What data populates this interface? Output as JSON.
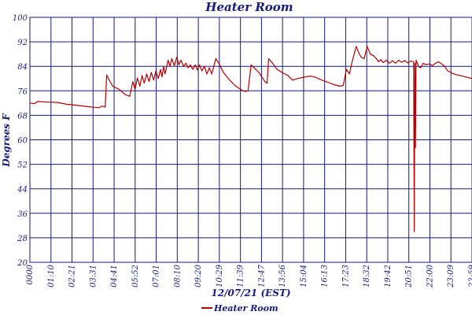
{
  "chart_data": {
    "type": "line",
    "title": "Heater Room",
    "xlabel": "12/07/21 (EST)",
    "ylabel": "Degrees F",
    "ylim": [
      20,
      100
    ],
    "yticks": [
      20,
      28,
      36,
      44,
      52,
      60,
      68,
      76,
      84,
      92,
      100
    ],
    "grid": true,
    "legend_position": "bottom-center",
    "x_unit": "time of day (hh:mm)",
    "x_range": [
      "00:00",
      "23:59"
    ],
    "xtick_labels": [
      "0000",
      "01:10",
      "02:21",
      "03:31",
      "04:41",
      "05:52",
      "07:01",
      "08:10",
      "09:20",
      "10:29",
      "11:39",
      "12:47",
      "13:56",
      "15:04",
      "16:13",
      "17:23",
      "18:32",
      "19:42",
      "20:51",
      "22:00",
      "23:09",
      "23:59"
    ],
    "colors": {
      "series": "#b00000",
      "grid": "#1a1a7a",
      "text": "#1a1a7a",
      "background": "#ffffff"
    },
    "series": [
      {
        "name": "Heater Room",
        "color": "#b00000",
        "points": [
          [
            "00:00",
            72
          ],
          [
            "00:15",
            71.8
          ],
          [
            "00:25",
            72.5
          ],
          [
            "01:00",
            72.3
          ],
          [
            "01:30",
            72.2
          ],
          [
            "02:00",
            71.6
          ],
          [
            "02:40",
            71.2
          ],
          [
            "03:10",
            70.8
          ],
          [
            "03:31",
            70.6
          ],
          [
            "03:45",
            70.5
          ],
          [
            "03:55",
            71
          ],
          [
            "04:05",
            70.7
          ],
          [
            "04:10",
            81.2
          ],
          [
            "04:18",
            79.5
          ],
          [
            "04:30",
            77.5
          ],
          [
            "04:50",
            76.5
          ],
          [
            "05:10",
            74.8
          ],
          [
            "05:25",
            74.2
          ],
          [
            "05:35",
            79
          ],
          [
            "05:42",
            76.5
          ],
          [
            "05:50",
            80.2
          ],
          [
            "05:58",
            77.5
          ],
          [
            "06:05",
            81
          ],
          [
            "06:12",
            78.5
          ],
          [
            "06:20",
            81.5
          ],
          [
            "06:28",
            79
          ],
          [
            "06:35",
            82
          ],
          [
            "06:43",
            79.5
          ],
          [
            "06:50",
            82.5
          ],
          [
            "06:58",
            80
          ],
          [
            "07:05",
            83
          ],
          [
            "07:10",
            80.5
          ],
          [
            "07:15",
            84
          ],
          [
            "07:20",
            81.5
          ],
          [
            "07:30",
            86
          ],
          [
            "07:36",
            84
          ],
          [
            "07:42",
            86.5
          ],
          [
            "07:50",
            84.2
          ],
          [
            "07:58",
            87
          ],
          [
            "08:05",
            84.5
          ],
          [
            "08:12",
            86
          ],
          [
            "08:20",
            84
          ],
          [
            "08:28",
            85
          ],
          [
            "08:35",
            83.5
          ],
          [
            "08:42",
            84.5
          ],
          [
            "08:50",
            83
          ],
          [
            "08:58",
            84.5
          ],
          [
            "09:05",
            82.8
          ],
          [
            "09:12",
            84.5
          ],
          [
            "09:20",
            82.5
          ],
          [
            "09:28",
            84
          ],
          [
            "09:36",
            81.5
          ],
          [
            "09:44",
            83.5
          ],
          [
            "09:52",
            81.5
          ],
          [
            "10:05",
            86.5
          ],
          [
            "10:15",
            85
          ],
          [
            "10:30",
            82
          ],
          [
            "10:50",
            79.5
          ],
          [
            "11:10",
            77.5
          ],
          [
            "11:30",
            76.2
          ],
          [
            "11:40",
            75.8
          ],
          [
            "11:50",
            76
          ],
          [
            "12:00",
            84.5
          ],
          [
            "12:10",
            83.5
          ],
          [
            "12:25",
            82
          ],
          [
            "12:35",
            80.5
          ],
          [
            "12:45",
            79
          ],
          [
            "12:52",
            78.5
          ],
          [
            "12:57",
            86.5
          ],
          [
            "13:10",
            85
          ],
          [
            "13:25",
            83
          ],
          [
            "13:40",
            82
          ],
          [
            "14:00",
            81
          ],
          [
            "14:15",
            79.5
          ],
          [
            "14:30",
            80
          ],
          [
            "14:45",
            80.3
          ],
          [
            "15:00",
            80.6
          ],
          [
            "15:15",
            80.8
          ],
          [
            "15:30",
            80.4
          ],
          [
            "15:50",
            79.5
          ],
          [
            "16:10",
            78.8
          ],
          [
            "16:30",
            78
          ],
          [
            "16:50",
            77.5
          ],
          [
            "17:00",
            77.8
          ],
          [
            "17:10",
            83
          ],
          [
            "17:20",
            81.5
          ],
          [
            "17:30",
            86
          ],
          [
            "17:42",
            90.5
          ],
          [
            "17:50",
            88.5
          ],
          [
            "17:58",
            87
          ],
          [
            "18:08",
            86.5
          ],
          [
            "18:18",
            90.5
          ],
          [
            "18:28",
            88
          ],
          [
            "18:38",
            87.5
          ],
          [
            "18:48",
            86.5
          ],
          [
            "18:55",
            85.5
          ],
          [
            "19:02",
            86.2
          ],
          [
            "19:10",
            85.2
          ],
          [
            "19:20",
            86
          ],
          [
            "19:30",
            85
          ],
          [
            "19:40",
            85.8
          ],
          [
            "19:50",
            85
          ],
          [
            "20:00",
            86
          ],
          [
            "20:10",
            85.3
          ],
          [
            "20:20",
            85.9
          ],
          [
            "20:30",
            85.1
          ],
          [
            "20:40",
            85.7
          ],
          [
            "20:49",
            85.5
          ],
          [
            "20:51",
            30
          ],
          [
            "20:53",
            85
          ],
          [
            "20:55",
            57.5
          ],
          [
            "20:57",
            86
          ],
          [
            "21:05",
            84
          ],
          [
            "21:12",
            83.5
          ],
          [
            "21:20",
            85
          ],
          [
            "21:30",
            84.5
          ],
          [
            "21:40",
            84.8
          ],
          [
            "21:50",
            84.2
          ],
          [
            "22:00",
            85
          ],
          [
            "22:10",
            85.5
          ],
          [
            "22:20",
            84.8
          ],
          [
            "22:30",
            84
          ],
          [
            "22:40",
            82.5
          ],
          [
            "22:50",
            82
          ],
          [
            "23:00",
            81.5
          ],
          [
            "23:20",
            81
          ],
          [
            "23:40",
            80.5
          ],
          [
            "23:59",
            80
          ]
        ]
      }
    ]
  }
}
